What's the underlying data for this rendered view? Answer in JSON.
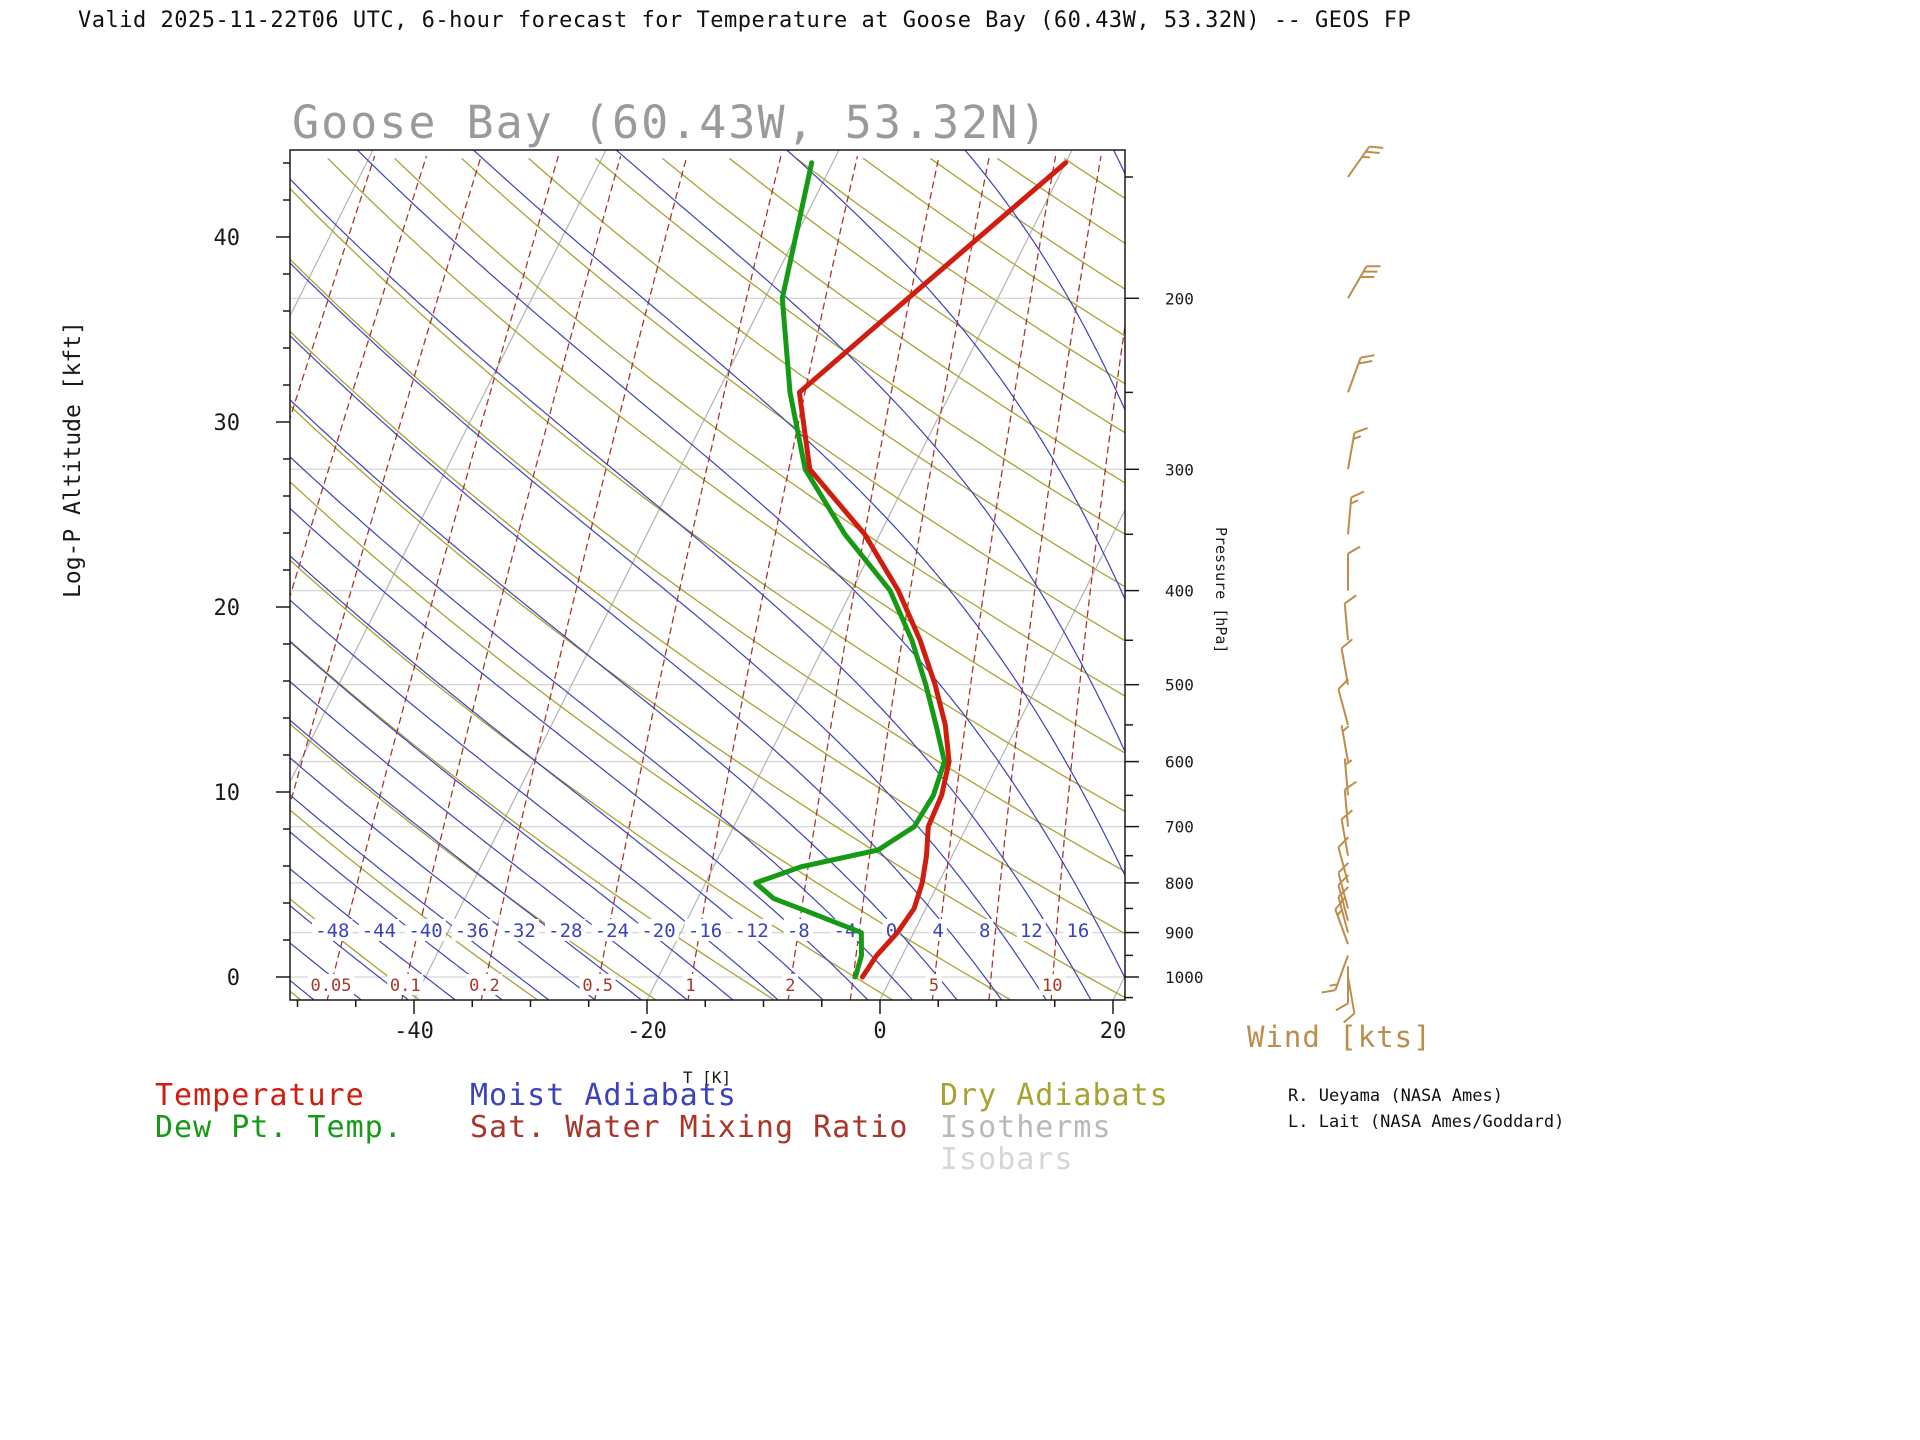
{
  "window": {
    "header": "Valid 2025-11-22T06 UTC, 6-hour forecast for Temperature at Goose Bay (60.43W, 53.32N) -- GEOS FP"
  },
  "title": "Goose Bay (60.43W, 53.32N)",
  "axes": {
    "left": {
      "label": "Log-P Altitude [kft]",
      "ticks": [
        0,
        10,
        20,
        30,
        40
      ]
    },
    "bottom": {
      "label": "T [K]",
      "ticks": [
        -40,
        -20,
        0,
        20
      ]
    },
    "right": {
      "label": "Pressure [hPa]",
      "ticks": [
        200,
        300,
        400,
        500,
        600,
        700,
        800,
        900,
        1000
      ]
    }
  },
  "wind_panel": {
    "title": "Wind [kts]"
  },
  "legend": {
    "items": [
      {
        "label": "Temperature",
        "color": "#cf1d10"
      },
      {
        "label": "Dew Pt. Temp.",
        "color": "#169a16"
      },
      {
        "label": "Moist Adiabats",
        "color": "#3a43bb"
      },
      {
        "label": "Sat. Water Mixing Ratio",
        "color": "#a8372a"
      },
      {
        "label": "Dry Adiabats",
        "color": "#a8a232"
      },
      {
        "label": "Isotherms",
        "color": "#b9b9b9"
      },
      {
        "label": "Isobars",
        "color": "#d6d6d6"
      }
    ]
  },
  "credits": {
    "line1": "R. Ueyama (NASA Ames)",
    "line2": "L. Lait (NASA Ames/Goddard)"
  },
  "colors": {
    "temperature": "#cf1d10",
    "dewpoint": "#169a16",
    "moist_adiabat": "#3a43bb",
    "mixing_ratio": "#a8372a",
    "dry_adiabat": "#a8a232",
    "isotherm": "#b9b9b9",
    "isobar": "#d6d6d6",
    "wind": "#bd8d4d",
    "frame": "#1a1a1a",
    "title_gray": "#9a9a9a",
    "moist_label": "#3a43bb",
    "mixing_label": "#a8372a"
  },
  "chart_data": {
    "type": "line",
    "subtype": "skew-t-log-p",
    "title": "Goose Bay (60.43W, 53.32N)",
    "x_axis": {
      "label": "T [K]",
      "ticks": [
        -40,
        -20,
        0,
        20
      ]
    },
    "y_axis_left": {
      "label": "Log-P Altitude [kft]",
      "ticks": [
        0,
        10,
        20,
        30,
        40
      ]
    },
    "y_axis_right": {
      "label": "Pressure [hPa]",
      "ticks": [
        200,
        300,
        400,
        500,
        600,
        700,
        800,
        900,
        1000
      ]
    },
    "series": [
      {
        "name": "Temperature",
        "color": "#cf1d10",
        "units": "pressure_hPa, temp_C",
        "points": [
          [
            1000,
            -2.5
          ],
          [
            950,
            -2.2
          ],
          [
            900,
            -1.4
          ],
          [
            850,
            -1.0
          ],
          [
            800,
            -1.4
          ],
          [
            750,
            -2.2
          ],
          [
            700,
            -3.3
          ],
          [
            650,
            -3.5
          ],
          [
            600,
            -4.3
          ],
          [
            550,
            -6.2
          ],
          [
            500,
            -8.8
          ],
          [
            450,
            -12.0
          ],
          [
            400,
            -16.0
          ],
          [
            350,
            -21.3
          ],
          [
            300,
            -28.8
          ],
          [
            250,
            -33.0
          ],
          [
            200,
            -27.7
          ],
          [
            145,
            -20.0
          ]
        ]
      },
      {
        "name": "Dew Pt. Temp.",
        "color": "#169a16",
        "units": "pressure_hPa, temp_C",
        "points": [
          [
            1000,
            -3.1
          ],
          [
            950,
            -3.5
          ],
          [
            900,
            -4.5
          ],
          [
            860,
            -9.5
          ],
          [
            830,
            -13.5
          ],
          [
            800,
            -15.7
          ],
          [
            770,
            -12.5
          ],
          [
            740,
            -6.6
          ],
          [
            700,
            -4.5
          ],
          [
            650,
            -4.2
          ],
          [
            600,
            -4.7
          ],
          [
            550,
            -7.0
          ],
          [
            500,
            -9.6
          ],
          [
            450,
            -12.7
          ],
          [
            400,
            -16.7
          ],
          [
            350,
            -23.0
          ],
          [
            300,
            -29.2
          ],
          [
            250,
            -33.8
          ],
          [
            200,
            -38.5
          ],
          [
            145,
            -41.8
          ]
        ]
      }
    ],
    "wind_barbs_kts": {
      "pressure_hPa": [
        1000,
        975,
        950,
        925,
        900,
        875,
        850,
        800,
        750,
        700,
        650,
        600,
        550,
        500,
        450,
        400,
        350,
        300,
        250,
        200,
        150
      ],
      "speed_kts": [
        10,
        10,
        15,
        15,
        15,
        10,
        10,
        10,
        10,
        10,
        5,
        5,
        10,
        10,
        10,
        10,
        15,
        15,
        20,
        30,
        25
      ],
      "dir_deg_from": [
        170,
        180,
        200,
        340,
        345,
        345,
        345,
        345,
        350,
        355,
        355,
        350,
        345,
        350,
        355,
        0,
        5,
        10,
        20,
        30,
        35
      ]
    },
    "background": {
      "moist_adiabat_labels_C": [
        -48,
        -44,
        -40,
        -36,
        -32,
        -28,
        -24,
        -20,
        -16,
        -12,
        -8,
        -4,
        0,
        4,
        8,
        12,
        16
      ],
      "mixing_ratio_labels_g_per_kg": [
        "0.05",
        "0.1",
        "0.2",
        "0.5",
        "1",
        "2",
        "5",
        "10"
      ],
      "isotherms_C": {
        "start": -100,
        "end": 40,
        "step": 20
      },
      "isobars_hPa": [
        200,
        300,
        400,
        500,
        600,
        700,
        800,
        900,
        1000
      ],
      "dry_adiabats_theta_K": {
        "start": 200,
        "end": 440,
        "step": 10
      },
      "moist_adiabats_C_at_1000hPa": {
        "start": -56,
        "end": 48,
        "step": 4
      },
      "mixing_ratio_lines_g_per_kg": [
        0.005,
        0.01,
        0.02,
        0.05,
        0.1,
        0.2,
        0.5,
        1,
        2,
        3,
        5,
        7,
        10,
        15,
        20,
        30
      ]
    }
  }
}
